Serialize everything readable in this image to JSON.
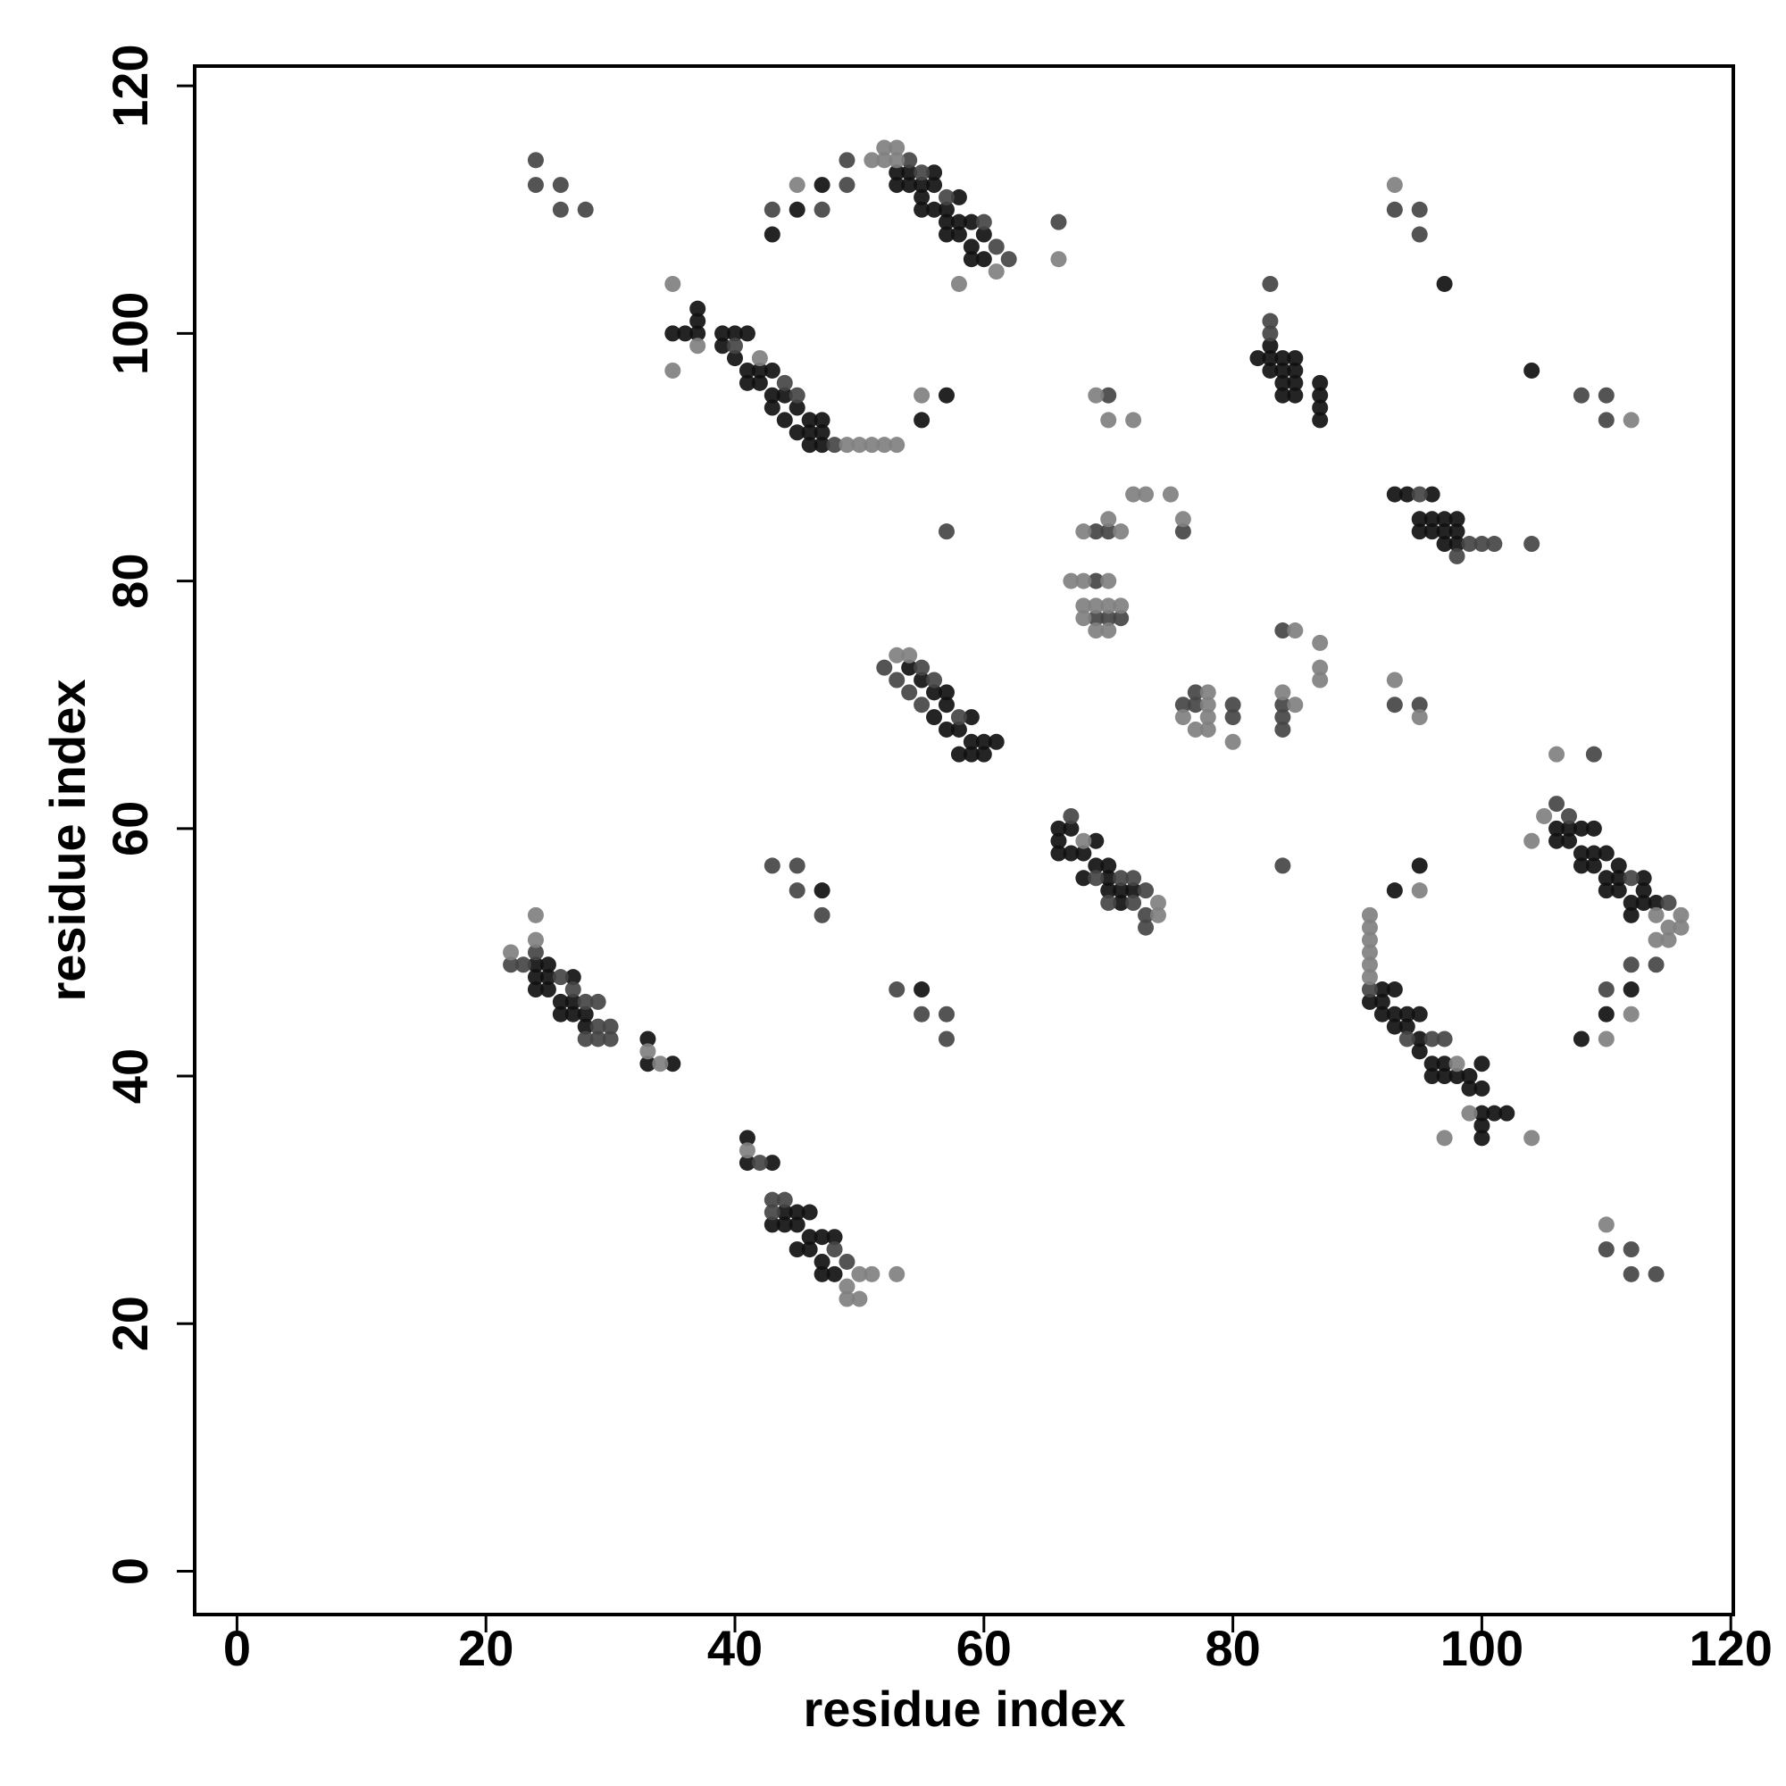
{
  "chart_data": {
    "type": "scatter",
    "x_label": "residue index",
    "y_label": "residue index",
    "xlim": [
      -3.4,
      120.2
    ],
    "ylim": [
      -3.5,
      121.6
    ],
    "xticks": [
      0,
      20,
      40,
      60,
      80,
      100,
      120
    ],
    "yticks": [
      0,
      20,
      40,
      60,
      80,
      100,
      120
    ],
    "series": [
      {
        "color": "#111111",
        "x": [
          35,
          36,
          37,
          37,
          37,
          39,
          39,
          40,
          41,
          40,
          41,
          41,
          42,
          42,
          43,
          43,
          43,
          44,
          44,
          45,
          45,
          46,
          46,
          46,
          47,
          47,
          47,
          55,
          57,
          43,
          45,
          47,
          53,
          53,
          54,
          54,
          55,
          55,
          55,
          56,
          56,
          56,
          57,
          57,
          57,
          58,
          58,
          58,
          59,
          59,
          59,
          60,
          60,
          54,
          55,
          56,
          56,
          57,
          57,
          57,
          58,
          58,
          59,
          59,
          59,
          60,
          60,
          61,
          66,
          66,
          66,
          67,
          67,
          68,
          68,
          69,
          69,
          70,
          70,
          70,
          71,
          71,
          72,
          82,
          83,
          83,
          83,
          84,
          84,
          84,
          84,
          85,
          85,
          85,
          85,
          87,
          87,
          87,
          87,
          97,
          104,
          93,
          94,
          96,
          95,
          95,
          96,
          96,
          97,
          97,
          97,
          98,
          98,
          98,
          91,
          92,
          92,
          92,
          93,
          93,
          93,
          94,
          94,
          95,
          95,
          95,
          96,
          96,
          97,
          97,
          98,
          99,
          99,
          100,
          100,
          100,
          100,
          100,
          101,
          102,
          93,
          95,
          106,
          106,
          107,
          107,
          108,
          108,
          108,
          109,
          109,
          109,
          110,
          110,
          110,
          111,
          111,
          111,
          112,
          112,
          113,
          113,
          113,
          114,
          110,
          108,
          112,
          24,
          24,
          24,
          25,
          25,
          25,
          26,
          26,
          27,
          27,
          27,
          28,
          28,
          33,
          33,
          35,
          47,
          55,
          41,
          41,
          43,
          43,
          44,
          44,
          45,
          45,
          45,
          46,
          46,
          46,
          47,
          47,
          47,
          48,
          48
        ],
        "y": [
          100,
          100,
          102,
          101,
          100,
          100,
          99,
          100,
          100,
          98,
          97,
          96,
          97,
          96,
          97,
          95,
          94,
          95,
          93,
          94,
          92,
          93,
          92,
          91,
          93,
          92,
          91,
          93,
          95,
          108,
          110,
          112,
          113,
          112,
          113,
          112,
          112,
          111,
          110,
          113,
          112,
          110,
          110,
          109,
          108,
          111,
          109,
          108,
          109,
          107,
          106,
          108,
          106,
          73,
          72,
          71,
          69,
          71,
          70,
          68,
          68,
          66,
          69,
          67,
          66,
          67,
          66,
          67,
          60,
          59,
          58,
          60,
          58,
          58,
          56,
          59,
          57,
          57,
          56,
          55,
          55,
          54,
          55,
          98,
          99,
          98,
          97,
          98,
          97,
          96,
          95,
          98,
          97,
          96,
          95,
          96,
          95,
          94,
          93,
          104,
          97,
          87,
          87,
          87,
          85,
          84,
          85,
          84,
          85,
          84,
          83,
          85,
          84,
          83,
          46,
          47,
          46,
          45,
          47,
          45,
          44,
          45,
          44,
          45,
          43,
          42,
          41,
          40,
          41,
          40,
          40,
          40,
          39,
          41,
          39,
          37,
          36,
          35,
          37,
          37,
          55,
          57,
          60,
          59,
          60,
          59,
          60,
          58,
          57,
          60,
          58,
          57,
          58,
          56,
          55,
          57,
          56,
          55,
          54,
          53,
          56,
          55,
          54,
          54,
          45,
          43,
          47,
          49,
          48,
          47,
          49,
          48,
          47,
          46,
          45,
          48,
          46,
          45,
          45,
          44,
          43,
          41,
          41,
          55,
          47,
          35,
          33,
          33,
          28,
          29,
          28,
          29,
          28,
          26,
          29,
          27,
          26,
          27,
          25,
          24,
          27,
          24
        ]
      },
      {
        "color": "#454545",
        "x": [
          24,
          24,
          26,
          26,
          28,
          40,
          44,
          45,
          48,
          43,
          47,
          49,
          49,
          54,
          55,
          57,
          60,
          61,
          62,
          66,
          52,
          53,
          54,
          55,
          55,
          56,
          58,
          57,
          69,
          69,
          70,
          76,
          69,
          70,
          71,
          70,
          76,
          77,
          77,
          80,
          80,
          84,
          84,
          84,
          84,
          84,
          67,
          69,
          70,
          71,
          72,
          72,
          73,
          73,
          73,
          83,
          83,
          83,
          93,
          95,
          95,
          108,
          110,
          110,
          95,
          98,
          99,
          100,
          101,
          104,
          93,
          95,
          91,
          94,
          96,
          97,
          106,
          107,
          112,
          115,
          109,
          110,
          112,
          114,
          22,
          23,
          24,
          26,
          27,
          28,
          28,
          29,
          29,
          29,
          30,
          30,
          43,
          45,
          45,
          47,
          53,
          55,
          57,
          57,
          42,
          43,
          43,
          44,
          48,
          49,
          110,
          112,
          112,
          114
        ],
        "y": [
          114,
          112,
          112,
          110,
          110,
          99,
          96,
          95,
          91,
          110,
          110,
          114,
          112,
          114,
          113,
          111,
          109,
          107,
          106,
          109,
          73,
          72,
          71,
          73,
          70,
          72,
          69,
          84,
          80,
          84,
          84,
          84,
          77,
          77,
          77,
          95,
          70,
          71,
          70,
          70,
          69,
          76,
          70,
          69,
          68,
          57,
          61,
          56,
          54,
          56,
          56,
          54,
          55,
          53,
          52,
          104,
          101,
          100,
          110,
          110,
          108,
          95,
          95,
          93,
          87,
          82,
          83,
          83,
          83,
          83,
          70,
          70,
          47,
          43,
          43,
          43,
          62,
          61,
          56,
          54,
          66,
          47,
          49,
          49,
          49,
          49,
          50,
          48,
          47,
          46,
          43,
          46,
          44,
          43,
          44,
          43,
          57,
          57,
          55,
          53,
          47,
          45,
          45,
          43,
          33,
          30,
          29,
          30,
          26,
          25,
          26,
          26,
          24,
          24
        ]
      },
      {
        "color": "#808080",
        "x": [
          35,
          35,
          37,
          42,
          49,
          50,
          51,
          52,
          53,
          55,
          45,
          51,
          52,
          52,
          53,
          53,
          61,
          58,
          66,
          53,
          54,
          67,
          68,
          70,
          68,
          70,
          71,
          68,
          68,
          69,
          69,
          70,
          70,
          71,
          72,
          73,
          75,
          76,
          69,
          70,
          72,
          76,
          77,
          78,
          78,
          78,
          78,
          80,
          85,
          84,
          85,
          87,
          87,
          87,
          68,
          74,
          74,
          93,
          112,
          93,
          95,
          91,
          91,
          91,
          91,
          91,
          91,
          98,
          99,
          97,
          104,
          95,
          104,
          105,
          114,
          114,
          115,
          115,
          116,
          116,
          106,
          110,
          112,
          22,
          24,
          24,
          33,
          34,
          41,
          49,
          49,
          50,
          50,
          51,
          53,
          110
        ],
        "y": [
          104,
          97,
          99,
          98,
          91,
          91,
          91,
          91,
          91,
          95,
          112,
          114,
          115,
          114,
          115,
          114,
          105,
          104,
          106,
          74,
          74,
          80,
          80,
          80,
          84,
          85,
          84,
          78,
          77,
          78,
          76,
          78,
          76,
          78,
          87,
          87,
          87,
          85,
          95,
          93,
          93,
          69,
          68,
          71,
          70,
          69,
          68,
          67,
          76,
          71,
          70,
          75,
          73,
          72,
          59,
          54,
          53,
          112,
          93,
          72,
          69,
          53,
          52,
          51,
          50,
          49,
          48,
          41,
          37,
          35,
          35,
          55,
          59,
          61,
          53,
          51,
          52,
          51,
          53,
          52,
          66,
          43,
          45,
          50,
          53,
          51,
          42,
          41,
          34,
          23,
          22,
          24,
          22,
          24,
          24,
          28
        ]
      }
    ]
  }
}
